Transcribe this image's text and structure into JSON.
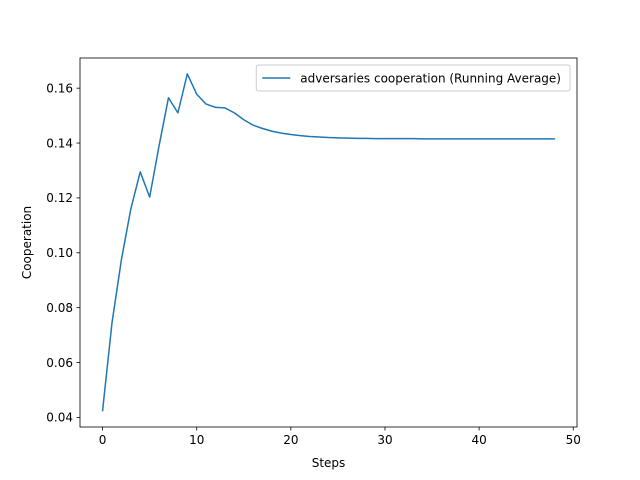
{
  "chart_data": {
    "type": "line",
    "title": "",
    "xlabel": "Steps",
    "ylabel": "Cooperation",
    "xlim": [
      -2.4,
      50.4
    ],
    "ylim": [
      0.0365,
      0.171
    ],
    "xticks": [
      0,
      10,
      20,
      30,
      40,
      50
    ],
    "yticks": [
      0.04,
      0.06,
      0.08,
      0.1,
      0.12,
      0.14,
      0.16
    ],
    "xtick_labels": [
      "0",
      "10",
      "20",
      "30",
      "40",
      "50"
    ],
    "ytick_labels": [
      "0.04",
      "0.06",
      "0.08",
      "0.10",
      "0.12",
      "0.14",
      "0.16"
    ],
    "grid": false,
    "legend": {
      "placement": "upper right"
    },
    "series": [
      {
        "name": "adversaries cooperation (Running Average)",
        "color": "#1f77b4",
        "x": [
          0,
          1,
          2,
          3,
          4,
          5,
          6,
          7,
          8,
          9,
          10,
          11,
          12,
          13,
          14,
          15,
          16,
          17,
          18,
          19,
          20,
          21,
          22,
          23,
          24,
          25,
          26,
          27,
          28,
          29,
          30,
          31,
          32,
          33,
          34,
          35,
          36,
          37,
          38,
          39,
          40,
          41,
          42,
          43,
          44,
          45,
          46,
          47,
          48
        ],
        "y": [
          0.0425,
          0.0745,
          0.0975,
          0.116,
          0.1295,
          0.1203,
          0.139,
          0.1565,
          0.151,
          0.1652,
          0.1578,
          0.1542,
          0.153,
          0.1528,
          0.151,
          0.1485,
          0.1465,
          0.1453,
          0.1443,
          0.1436,
          0.1431,
          0.1427,
          0.1424,
          0.1422,
          0.142,
          0.1419,
          0.1418,
          0.1417,
          0.1417,
          0.1416,
          0.1416,
          0.1416,
          0.1416,
          0.1416,
          0.1415,
          0.1415,
          0.1415,
          0.1415,
          0.1415,
          0.1415,
          0.1415,
          0.1415,
          0.1415,
          0.1415,
          0.1415,
          0.1415,
          0.1415,
          0.1415,
          0.1415
        ]
      }
    ]
  }
}
